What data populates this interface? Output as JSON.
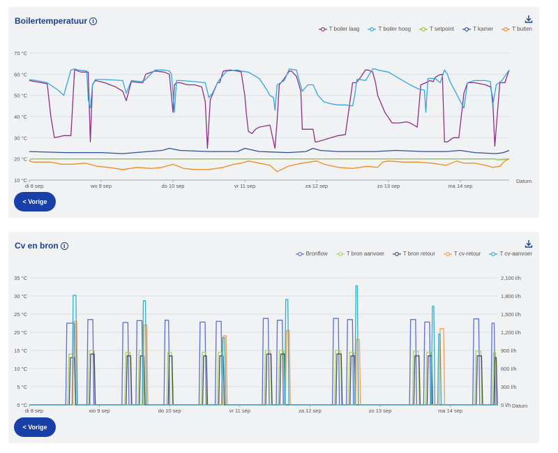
{
  "charts": [
    {
      "title": "Boilertemperatuur",
      "legend": [
        "T boiler laag",
        "T boiler hoog",
        "T setpoint",
        "T kamer",
        "T buiten"
      ],
      "prev_label": "< Vorige",
      "download_icon": "download-icon",
      "info_icon": "info-icon"
    },
    {
      "title": "Cv en bron",
      "legend": [
        "Bronflow",
        "T bron aanvoer",
        "T bron retour",
        "T cv-retour",
        "T cv-aanvoer"
      ],
      "prev_label": "< Vorige",
      "download_icon": "download-icon",
      "info_icon": "info-icon"
    }
  ],
  "chart_data": [
    {
      "type": "line",
      "title": "Boilertemperatuur",
      "xlabel": "Datum",
      "ylabel": "",
      "ylim": [
        10,
        70
      ],
      "y_ticks": [
        "10 °C",
        "20 °C",
        "30 °C",
        "40 °C",
        "50 °C",
        "60 °C",
        "70 °C"
      ],
      "x_range": [
        0,
        6.68
      ],
      "x_ticks": [
        {
          "x": 0,
          "label": "di 8 sep"
        },
        {
          "x": 1,
          "label": "wo 9 sep"
        },
        {
          "x": 2,
          "label": "do 10 sep"
        },
        {
          "x": 3,
          "label": "vr 11 sep"
        },
        {
          "x": 4,
          "label": "za 12 sep"
        },
        {
          "x": 5,
          "label": "zo 13 sep"
        },
        {
          "x": 6,
          "label": "ma 14 sep"
        }
      ],
      "grid": true,
      "legend_position": "top-right",
      "series": [
        {
          "name": "T boiler laag",
          "color": "#8b2f86",
          "x": [
            0,
            0.25,
            0.3,
            0.35,
            0.42,
            0.48,
            0.58,
            0.63,
            0.65,
            0.68,
            0.72,
            0.82,
            0.85,
            0.88,
            0.92,
            1.05,
            1.2,
            1.3,
            1.35,
            1.42,
            1.55,
            1.58,
            1.62,
            1.75,
            1.88,
            1.95,
            2.0,
            2.02,
            2.05,
            2.1,
            2.2,
            2.3,
            2.4,
            2.45,
            2.48,
            2.52,
            2.62,
            2.65,
            2.7,
            2.8,
            2.9,
            2.95,
            3.0,
            3.02,
            3.05,
            3.1,
            3.15,
            3.2,
            3.35,
            3.42,
            3.45,
            3.48,
            3.55,
            3.62,
            3.65,
            3.72,
            3.78,
            3.8,
            3.95,
            3.98,
            4.0,
            4.05,
            4.1,
            4.2,
            4.3,
            4.4,
            4.5,
            4.53,
            4.55,
            4.6,
            4.68,
            4.72,
            4.78,
            4.82,
            4.85,
            4.95,
            5.05,
            5.15,
            5.25,
            5.3,
            5.35,
            5.4,
            5.45,
            5.52,
            5.58,
            5.62,
            5.65,
            5.7,
            5.75,
            5.78,
            5.82,
            5.9,
            5.98,
            6.05,
            6.1,
            6.2,
            6.35,
            6.42,
            6.45,
            6.48,
            6.55,
            6.62,
            6.68
          ],
          "y": [
            57,
            55.5,
            40,
            30,
            30.5,
            31,
            31,
            62,
            62,
            61.5,
            61,
            61,
            28,
            55,
            57,
            56,
            54,
            52,
            47.5,
            56.5,
            56,
            56,
            60,
            61.5,
            61,
            60,
            42,
            55,
            56,
            56,
            55,
            55,
            54,
            47,
            25,
            48,
            56,
            56,
            61.5,
            62,
            61.5,
            61,
            50,
            42,
            33,
            32,
            34,
            35,
            36,
            25,
            38,
            55,
            58,
            61.5,
            61.5,
            59,
            52,
            34,
            34,
            28,
            28,
            28.5,
            29,
            30,
            31,
            31.5,
            56,
            56,
            56,
            58,
            62,
            62,
            61,
            56,
            50,
            42,
            37,
            37,
            37.5,
            37,
            36,
            35,
            55,
            56,
            57,
            56.5,
            58.5,
            59.5,
            60,
            28,
            28,
            30,
            30,
            51,
            56,
            56,
            55,
            54,
            49,
            26,
            56,
            56,
            62
          ]
        },
        {
          "name": "T boiler hoog",
          "color": "#2fa6e0",
          "x": [
            0,
            0.1,
            0.25,
            0.4,
            0.48,
            0.58,
            0.63,
            0.68,
            0.8,
            0.82,
            0.85,
            0.88,
            0.92,
            1.05,
            1.3,
            1.35,
            1.42,
            1.55,
            1.6,
            1.75,
            1.88,
            1.95,
            1.98,
            2.02,
            2.05,
            2.1,
            2.3,
            2.45,
            2.5,
            2.55,
            2.62,
            2.65,
            2.75,
            2.9,
            2.95,
            3.05,
            3.2,
            3.3,
            3.35,
            3.4,
            3.42,
            3.45,
            3.55,
            3.62,
            3.72,
            3.75,
            3.8,
            3.88,
            3.95,
            4.02,
            4.1,
            4.2,
            4.3,
            4.4,
            4.5,
            4.53,
            4.56,
            4.6,
            4.68,
            4.78,
            4.82,
            4.85,
            5.0,
            5.15,
            5.3,
            5.42,
            5.5,
            5.52,
            5.55,
            5.65,
            5.72,
            5.78,
            5.82,
            5.85,
            6.05,
            6.1,
            6.2,
            6.35,
            6.42,
            6.45,
            6.5,
            6.58,
            6.68
          ],
          "y": [
            57.5,
            57,
            56,
            52.5,
            50,
            62,
            62.5,
            62,
            61.5,
            48,
            44,
            55,
            57.5,
            57.5,
            57,
            51,
            57,
            56.5,
            57,
            62,
            62,
            61.5,
            60,
            42,
            57,
            57,
            56.5,
            56,
            49,
            51,
            56,
            57.5,
            61.5,
            62,
            61.5,
            61,
            58,
            53,
            50,
            49,
            43,
            55,
            57,
            62.5,
            62,
            58,
            52,
            55,
            55,
            50,
            47,
            46,
            45.5,
            45.5,
            45,
            50,
            57.5,
            57.5,
            57,
            62.5,
            62.5,
            62,
            61,
            58,
            55,
            53,
            52.5,
            42,
            58,
            58,
            56,
            62,
            60,
            57,
            44,
            56,
            57,
            57,
            56.5,
            45,
            55,
            57,
            62
          ]
        },
        {
          "name": "T setpoint",
          "color": "#8dc63f",
          "x": [
            0,
            0.02,
            6.48,
            6.52,
            6.68
          ],
          "y": [
            19,
            20,
            20,
            19.5,
            20
          ]
        },
        {
          "name": "T kamer",
          "color": "#2b4f9e",
          "x": [
            0,
            0.5,
            1.0,
            1.3,
            1.65,
            1.85,
            1.95,
            2.1,
            2.5,
            2.9,
            3.0,
            3.2,
            3.6,
            3.85,
            3.95,
            4.05,
            4.3,
            4.8,
            5.1,
            5.5,
            5.8,
            6.0,
            6.2,
            6.5,
            6.6,
            6.68
          ],
          "y": [
            23.5,
            23,
            23,
            22.5,
            23.5,
            24,
            25,
            24,
            23.5,
            23.5,
            25,
            23.5,
            23,
            23.5,
            25,
            24,
            23.5,
            23.5,
            24,
            23.5,
            23.5,
            24,
            23,
            22.5,
            23,
            24
          ]
        },
        {
          "name": "T buiten",
          "color": "#f28a1e",
          "x": [
            0,
            0.05,
            0.3,
            0.45,
            0.6,
            0.78,
            0.95,
            1.1,
            1.3,
            1.5,
            1.7,
            1.85,
            2.0,
            2.15,
            2.3,
            2.5,
            2.7,
            2.85,
            2.95,
            3.05,
            3.2,
            3.35,
            3.45,
            3.6,
            3.8,
            4.0,
            4.1,
            4.3,
            4.5,
            4.7,
            4.85,
            4.92,
            5.0,
            5.2,
            5.4,
            5.6,
            5.8,
            5.95,
            6.05,
            6.2,
            6.35,
            6.45,
            6.55,
            6.62,
            6.68
          ],
          "y": [
            19,
            18.5,
            18.5,
            17.5,
            17.5,
            18,
            16.5,
            16,
            15,
            16,
            15.5,
            16,
            17.5,
            15.5,
            15,
            15,
            16,
            17.5,
            18,
            19,
            18,
            17,
            14,
            16.5,
            18,
            19,
            17.5,
            16,
            15.5,
            16.5,
            16,
            18.5,
            19,
            18.5,
            18.5,
            18,
            17,
            19,
            18,
            18,
            17,
            16,
            16.5,
            19,
            20
          ]
        }
      ]
    },
    {
      "type": "line",
      "title": "Cv en bron",
      "xlabel": "Datum",
      "ylim": [
        0,
        35
      ],
      "y_ticks": [
        "0 °C",
        "5 °C",
        "10 °C",
        "15 °C",
        "20 °C",
        "25 °C",
        "30 °C",
        "35 °C"
      ],
      "y2lim": [
        0,
        2100
      ],
      "y2_ticks": [
        "0 l/h",
        "300 l/h",
        "600 l/h",
        "900 l/h",
        "1,200 l/h",
        "1,500 l/h",
        "1,800 l/h",
        "2,100 l/h"
      ],
      "x_range": [
        0,
        6.68
      ],
      "x_ticks": [
        {
          "x": 0,
          "label": "di 8 sep"
        },
        {
          "x": 1,
          "label": "wo 9 sep"
        },
        {
          "x": 2,
          "label": "do 10 sep"
        },
        {
          "x": 3,
          "label": "vr 11 sep"
        },
        {
          "x": 4,
          "label": "za 12 sep"
        },
        {
          "x": 5,
          "label": "zo 13 sep"
        },
        {
          "x": 6,
          "label": "ma 14 sep"
        }
      ],
      "grid": true,
      "legend_position": "top-right",
      "series": [
        {
          "name": "Bronflow",
          "color": "#5a6fd0",
          "pulses": [
            [
              0.52,
              0.66,
              22.5
            ],
            [
              0.82,
              0.92,
              23.5
            ],
            [
              1.32,
              1.42,
              22.7
            ],
            [
              1.52,
              1.62,
              23.2
            ],
            [
              1.92,
              2.0,
              23.3
            ],
            [
              2.42,
              2.52,
              22.8
            ],
            [
              2.65,
              2.75,
              23
            ],
            [
              3.32,
              3.42,
              23.8
            ],
            [
              3.52,
              3.62,
              23.3
            ],
            [
              4.32,
              4.42,
              23.8
            ],
            [
              4.52,
              4.62,
              23.5
            ],
            [
              5.42,
              5.52,
              23.5
            ],
            [
              5.62,
              5.72,
              22.8
            ],
            [
              6.32,
              6.42,
              23.7
            ],
            [
              6.58,
              6.64,
              22.5
            ]
          ]
        },
        {
          "name": "T bron aanvoer",
          "color": "#a8d25c",
          "pulses": [
            [
              0.55,
              0.66,
              14
            ],
            [
              0.84,
              0.94,
              15
            ],
            [
              1.36,
              1.45,
              14.5
            ],
            [
              1.55,
              1.64,
              15
            ],
            [
              1.96,
              2.04,
              14.5
            ],
            [
              2.45,
              2.53,
              14.5
            ],
            [
              2.68,
              2.76,
              14.5
            ],
            [
              3.35,
              3.45,
              15
            ],
            [
              3.55,
              3.64,
              15
            ],
            [
              4.35,
              4.45,
              15
            ],
            [
              4.55,
              4.64,
              14.5
            ],
            [
              5.46,
              5.56,
              14.8
            ],
            [
              5.65,
              5.74,
              14.5
            ],
            [
              6.35,
              6.45,
              14.8
            ],
            [
              6.6,
              6.66,
              14.5
            ]
          ]
        },
        {
          "name": "T bron retour",
          "color": "#4a4a72",
          "pulses": [
            [
              0.57,
              0.66,
              13
            ],
            [
              0.86,
              0.94,
              14
            ],
            [
              1.38,
              1.46,
              13.5
            ],
            [
              1.57,
              1.65,
              13.5
            ],
            [
              1.98,
              2.05,
              13.5
            ],
            [
              2.47,
              2.54,
              13.5
            ],
            [
              2.7,
              2.78,
              13.5
            ],
            [
              3.37,
              3.46,
              14
            ],
            [
              3.57,
              3.65,
              14
            ],
            [
              4.37,
              4.46,
              14
            ],
            [
              4.57,
              4.65,
              13.5
            ],
            [
              5.48,
              5.57,
              13.5
            ],
            [
              5.67,
              5.75,
              13.5
            ],
            [
              6.37,
              6.46,
              13.5
            ],
            [
              6.62,
              6.67,
              13
            ]
          ]
        },
        {
          "name": "T cv-retour",
          "color": "#f0a050",
          "pulses": [
            [
              0.62,
              0.69,
              23
            ],
            [
              1.62,
              1.69,
              22
            ],
            [
              2.75,
              2.82,
              19
            ],
            [
              3.65,
              3.72,
              20.5
            ],
            [
              4.65,
              4.72,
              18
            ],
            [
              5.84,
              5.92,
              21
            ]
          ]
        },
        {
          "name": "T cv-aanvoer",
          "color": "#2bb0c8",
          "pulses": [
            [
              0.61,
              0.68,
              30.2
            ],
            [
              1.61,
              1.67,
              28.7
            ],
            [
              2.74,
              2.8,
              18.5
            ],
            [
              3.64,
              3.7,
              29
            ],
            [
              4.64,
              4.69,
              32.8
            ],
            [
              5.73,
              5.78,
              27.2
            ],
            [
              5.82,
              5.87,
              19.5
            ]
          ]
        }
      ]
    }
  ]
}
